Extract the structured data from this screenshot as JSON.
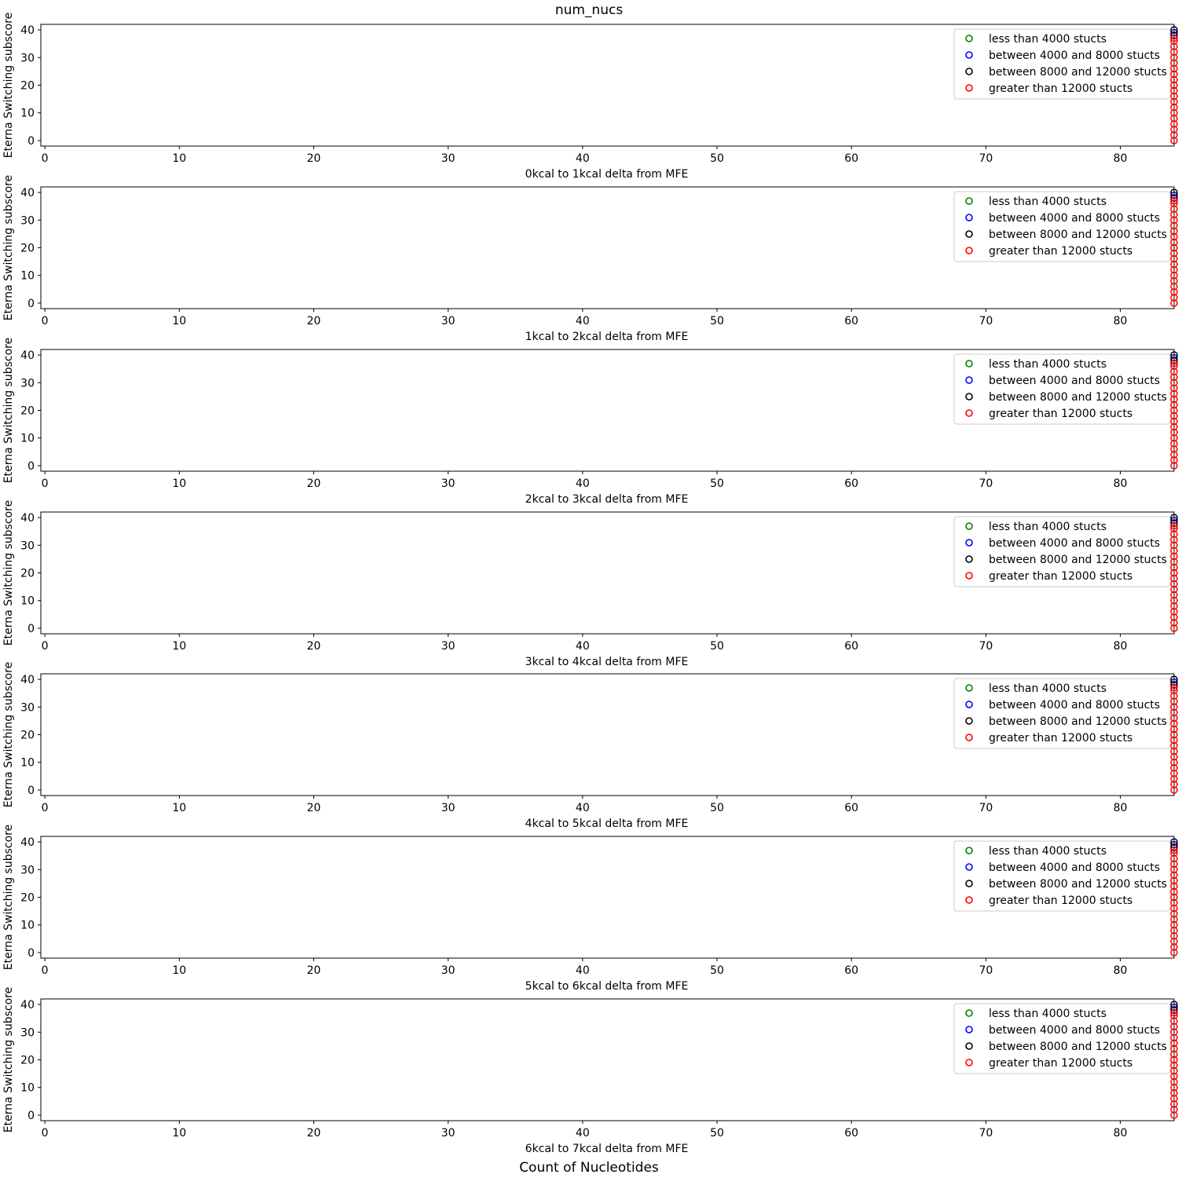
{
  "figure": {
    "title": "num_nucs",
    "xlabel": "Count of Nucleotides"
  },
  "legend_entries": [
    {
      "label": "less than 4000 stucts",
      "color": "#008000"
    },
    {
      "label": "between 4000 and 8000 stucts",
      "color": "#0000ff"
    },
    {
      "label": "between 8000 and 12000 stucts",
      "color": "#000000"
    },
    {
      "label": "greater than 12000 stucts",
      "color": "#ff0000"
    }
  ],
  "chart_data": [
    {
      "type": "scatter",
      "xlabel": "0kcal to 1kcal delta from MFE",
      "ylabel": "Eterna Switching subscore",
      "xlim": [
        -0.3,
        84
      ],
      "ylim": [
        -2,
        42
      ],
      "xticks": [
        0,
        10,
        20,
        30,
        40,
        50,
        60,
        70,
        80
      ],
      "yticks": [
        0,
        10,
        20,
        30,
        40
      ],
      "legend": "top-right",
      "series": [
        {
          "name": "less than 4000 stucts",
          "color": "#008000",
          "x": [],
          "y": []
        },
        {
          "name": "between 4000 and 8000 stucts",
          "color": "#0000ff",
          "x": [
            84
          ],
          "y": [
            39
          ]
        },
        {
          "name": "between 8000 and 12000 stucts",
          "color": "#000000",
          "x": [
            84,
            84
          ],
          "y": [
            40,
            38
          ]
        },
        {
          "name": "greater than 12000 stucts",
          "color": "#ff0000",
          "x": [
            84,
            84,
            84,
            84,
            84,
            84,
            84,
            84,
            84,
            84,
            84,
            84,
            84,
            84,
            84,
            84,
            84,
            84,
            84,
            84
          ],
          "y": [
            0,
            2,
            4,
            6,
            8,
            10,
            12,
            14,
            16,
            18,
            20,
            22,
            24,
            26,
            28,
            30,
            32,
            34,
            36,
            37
          ]
        }
      ]
    },
    {
      "type": "scatter",
      "xlabel": "1kcal to 2kcal delta from MFE",
      "ylabel": "Eterna Switching subscore",
      "xlim": [
        -0.3,
        84
      ],
      "ylim": [
        -2,
        42
      ],
      "xticks": [
        0,
        10,
        20,
        30,
        40,
        50,
        60,
        70,
        80
      ],
      "yticks": [
        0,
        10,
        20,
        30,
        40
      ],
      "legend": "top-right",
      "series": [
        {
          "name": "less than 4000 stucts",
          "color": "#008000",
          "x": [],
          "y": []
        },
        {
          "name": "between 4000 and 8000 stucts",
          "color": "#0000ff",
          "x": [
            84
          ],
          "y": [
            39
          ]
        },
        {
          "name": "between 8000 and 12000 stucts",
          "color": "#000000",
          "x": [
            84,
            84
          ],
          "y": [
            40,
            38
          ]
        },
        {
          "name": "greater than 12000 stucts",
          "color": "#ff0000",
          "x": [
            84,
            84,
            84,
            84,
            84,
            84,
            84,
            84,
            84,
            84,
            84,
            84,
            84,
            84,
            84,
            84,
            84,
            84,
            84,
            84
          ],
          "y": [
            0,
            2,
            4,
            6,
            8,
            10,
            12,
            14,
            16,
            18,
            20,
            22,
            24,
            26,
            28,
            30,
            32,
            34,
            36,
            37
          ]
        }
      ]
    },
    {
      "type": "scatter",
      "xlabel": "2kcal to 3kcal delta from MFE",
      "ylabel": "Eterna Switching subscore",
      "xlim": [
        -0.3,
        84
      ],
      "ylim": [
        -2,
        42
      ],
      "xticks": [
        0,
        10,
        20,
        30,
        40,
        50,
        60,
        70,
        80
      ],
      "yticks": [
        0,
        10,
        20,
        30,
        40
      ],
      "legend": "top-right",
      "series": [
        {
          "name": "less than 4000 stucts",
          "color": "#008000",
          "x": [],
          "y": []
        },
        {
          "name": "between 4000 and 8000 stucts",
          "color": "#0000ff",
          "x": [
            84
          ],
          "y": [
            39
          ]
        },
        {
          "name": "between 8000 and 12000 stucts",
          "color": "#000000",
          "x": [
            84,
            84
          ],
          "y": [
            40,
            38
          ]
        },
        {
          "name": "greater than 12000 stucts",
          "color": "#ff0000",
          "x": [
            84,
            84,
            84,
            84,
            84,
            84,
            84,
            84,
            84,
            84,
            84,
            84,
            84,
            84,
            84,
            84,
            84,
            84,
            84,
            84
          ],
          "y": [
            0,
            2,
            4,
            6,
            8,
            10,
            12,
            14,
            16,
            18,
            20,
            22,
            24,
            26,
            28,
            30,
            32,
            34,
            36,
            37
          ]
        }
      ]
    },
    {
      "type": "scatter",
      "xlabel": "3kcal to 4kcal delta from MFE",
      "ylabel": "Eterna Switching subscore",
      "xlim": [
        -0.3,
        84
      ],
      "ylim": [
        -2,
        42
      ],
      "xticks": [
        0,
        10,
        20,
        30,
        40,
        50,
        60,
        70,
        80
      ],
      "yticks": [
        0,
        10,
        20,
        30,
        40
      ],
      "legend": "top-right",
      "series": [
        {
          "name": "less than 4000 stucts",
          "color": "#008000",
          "x": [],
          "y": []
        },
        {
          "name": "between 4000 and 8000 stucts",
          "color": "#0000ff",
          "x": [
            84
          ],
          "y": [
            39
          ]
        },
        {
          "name": "between 8000 and 12000 stucts",
          "color": "#000000",
          "x": [
            84,
            84
          ],
          "y": [
            40,
            38
          ]
        },
        {
          "name": "greater than 12000 stucts",
          "color": "#ff0000",
          "x": [
            84,
            84,
            84,
            84,
            84,
            84,
            84,
            84,
            84,
            84,
            84,
            84,
            84,
            84,
            84,
            84,
            84,
            84,
            84,
            84
          ],
          "y": [
            0,
            2,
            4,
            6,
            8,
            10,
            12,
            14,
            16,
            18,
            20,
            22,
            24,
            26,
            28,
            30,
            32,
            34,
            36,
            37
          ]
        }
      ]
    },
    {
      "type": "scatter",
      "xlabel": "4kcal to 5kcal delta from MFE",
      "ylabel": "Eterna Switching subscore",
      "xlim": [
        -0.3,
        84
      ],
      "ylim": [
        -2,
        42
      ],
      "xticks": [
        0,
        10,
        20,
        30,
        40,
        50,
        60,
        70,
        80
      ],
      "yticks": [
        0,
        10,
        20,
        30,
        40
      ],
      "legend": "top-right",
      "series": [
        {
          "name": "less than 4000 stucts",
          "color": "#008000",
          "x": [],
          "y": []
        },
        {
          "name": "between 4000 and 8000 stucts",
          "color": "#0000ff",
          "x": [
            84
          ],
          "y": [
            39
          ]
        },
        {
          "name": "between 8000 and 12000 stucts",
          "color": "#000000",
          "x": [
            84,
            84
          ],
          "y": [
            40,
            38
          ]
        },
        {
          "name": "greater than 12000 stucts",
          "color": "#ff0000",
          "x": [
            84,
            84,
            84,
            84,
            84,
            84,
            84,
            84,
            84,
            84,
            84,
            84,
            84,
            84,
            84,
            84,
            84,
            84,
            84,
            84
          ],
          "y": [
            0,
            2,
            4,
            6,
            8,
            10,
            12,
            14,
            16,
            18,
            20,
            22,
            24,
            26,
            28,
            30,
            32,
            34,
            36,
            37
          ]
        }
      ]
    },
    {
      "type": "scatter",
      "xlabel": "5kcal to 6kcal delta from MFE",
      "ylabel": "Eterna Switching subscore",
      "xlim": [
        -0.3,
        84
      ],
      "ylim": [
        -2,
        42
      ],
      "xticks": [
        0,
        10,
        20,
        30,
        40,
        50,
        60,
        70,
        80
      ],
      "yticks": [
        0,
        10,
        20,
        30,
        40
      ],
      "legend": "top-right",
      "series": [
        {
          "name": "less than 4000 stucts",
          "color": "#008000",
          "x": [],
          "y": []
        },
        {
          "name": "between 4000 and 8000 stucts",
          "color": "#0000ff",
          "x": [
            84
          ],
          "y": [
            39
          ]
        },
        {
          "name": "between 8000 and 12000 stucts",
          "color": "#000000",
          "x": [
            84,
            84
          ],
          "y": [
            40,
            38
          ]
        },
        {
          "name": "greater than 12000 stucts",
          "color": "#ff0000",
          "x": [
            84,
            84,
            84,
            84,
            84,
            84,
            84,
            84,
            84,
            84,
            84,
            84,
            84,
            84,
            84,
            84,
            84,
            84,
            84,
            84
          ],
          "y": [
            0,
            2,
            4,
            6,
            8,
            10,
            12,
            14,
            16,
            18,
            20,
            22,
            24,
            26,
            28,
            30,
            32,
            34,
            36,
            37
          ]
        }
      ]
    },
    {
      "type": "scatter",
      "xlabel": "6kcal to 7kcal delta from MFE",
      "ylabel": "Eterna Switching subscore",
      "xlim": [
        -0.3,
        84
      ],
      "ylim": [
        -2,
        42
      ],
      "xticks": [
        0,
        10,
        20,
        30,
        40,
        50,
        60,
        70,
        80
      ],
      "yticks": [
        0,
        10,
        20,
        30,
        40
      ],
      "legend": "top-right",
      "series": [
        {
          "name": "less than 4000 stucts",
          "color": "#008000",
          "x": [],
          "y": []
        },
        {
          "name": "between 4000 and 8000 stucts",
          "color": "#0000ff",
          "x": [
            84
          ],
          "y": [
            39
          ]
        },
        {
          "name": "between 8000 and 12000 stucts",
          "color": "#000000",
          "x": [
            84,
            84
          ],
          "y": [
            40,
            38
          ]
        },
        {
          "name": "greater than 12000 stucts",
          "color": "#ff0000",
          "x": [
            84,
            84,
            84,
            84,
            84,
            84,
            84,
            84,
            84,
            84,
            84,
            84,
            84,
            84,
            84,
            84,
            84,
            84,
            84,
            84
          ],
          "y": [
            0,
            2,
            4,
            6,
            8,
            10,
            12,
            14,
            16,
            18,
            20,
            22,
            24,
            26,
            28,
            30,
            32,
            34,
            36,
            37
          ]
        }
      ]
    }
  ]
}
